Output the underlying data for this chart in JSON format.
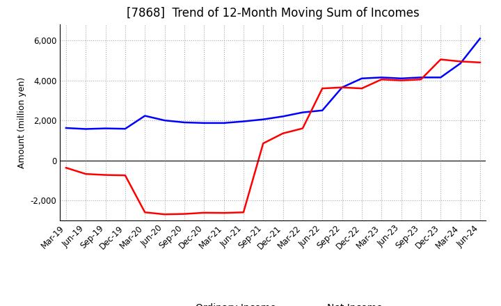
{
  "title": "[7868]  Trend of 12-Month Moving Sum of Incomes",
  "ylabel": "Amount (million yen)",
  "x_labels": [
    "Mar-19",
    "Jun-19",
    "Sep-19",
    "Dec-19",
    "Mar-20",
    "Jun-20",
    "Sep-20",
    "Dec-20",
    "Mar-21",
    "Jun-21",
    "Sep-21",
    "Dec-21",
    "Mar-22",
    "Jun-22",
    "Sep-22",
    "Dec-22",
    "Mar-23",
    "Jun-23",
    "Sep-23",
    "Dec-23",
    "Mar-24",
    "Jun-24"
  ],
  "ordinary_income": [
    1620,
    1570,
    1600,
    1580,
    2230,
    2000,
    1900,
    1870,
    1870,
    1950,
    2050,
    2200,
    2400,
    2500,
    3650,
    4100,
    4150,
    4100,
    4150,
    4150,
    4850,
    6100
  ],
  "net_income": [
    -370,
    -680,
    -730,
    -750,
    -2600,
    -2700,
    -2680,
    -2620,
    -2630,
    -2600,
    850,
    1350,
    1600,
    3600,
    3650,
    3600,
    4050,
    4000,
    4050,
    5050,
    4950,
    4900
  ],
  "ordinary_color": "#0000ff",
  "net_color": "#ff0000",
  "ylim": [
    -3000,
    6800
  ],
  "yticks": [
    -2000,
    0,
    2000,
    4000,
    6000
  ],
  "grid_color": "#aaaaaa",
  "background_color": "#ffffff",
  "title_fontsize": 12,
  "axis_fontsize": 9,
  "tick_fontsize": 8.5
}
